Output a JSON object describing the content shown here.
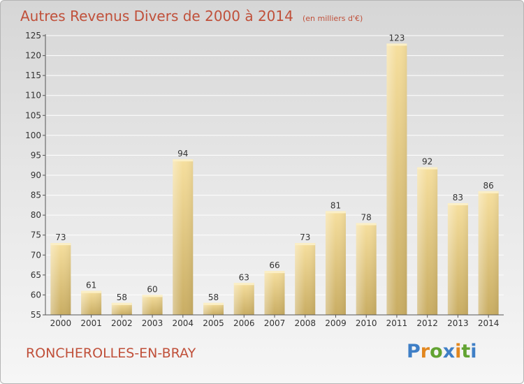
{
  "header": {
    "title": "Autres Revenus Divers de 2000 à 2014",
    "unit": "(en milliers d'€)"
  },
  "footer": {
    "city": "RONCHEROLLES-EN-BRAY",
    "logo_parts": [
      "P",
      "r",
      "o",
      "x",
      "i",
      "t",
      "i"
    ]
  },
  "colors": {
    "title": "#c0503a",
    "bar_light": "#f5dd9a",
    "bar_dark": "#c8ac62",
    "axis": "#555555",
    "grid": "#ffffff"
  },
  "chart_data": {
    "type": "bar",
    "title": "Autres Revenus Divers de 2000 à 2014",
    "xlabel": "",
    "ylabel": "",
    "categories": [
      "2000",
      "2001",
      "2002",
      "2003",
      "2004",
      "2005",
      "2006",
      "2007",
      "2008",
      "2009",
      "2010",
      "2011",
      "2012",
      "2013",
      "2014"
    ],
    "values": [
      73,
      61,
      58,
      60,
      94,
      58,
      63,
      66,
      73,
      81,
      78,
      123,
      92,
      83,
      86
    ],
    "ylim": [
      55,
      125
    ],
    "yticks": [
      55,
      60,
      65,
      70,
      75,
      80,
      85,
      90,
      95,
      100,
      105,
      110,
      115,
      120,
      125
    ],
    "grid": true,
    "legend": "none"
  }
}
